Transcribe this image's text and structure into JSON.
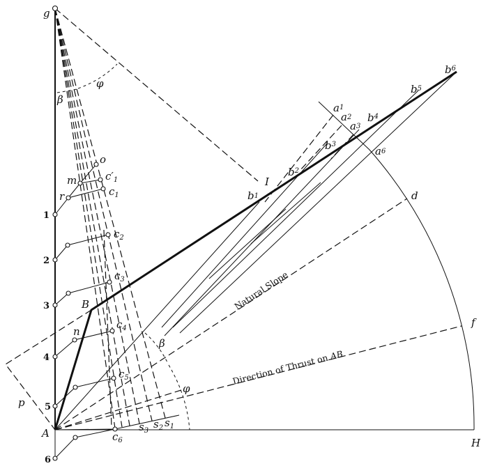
{
  "labels": {
    "g": "g",
    "A": "A",
    "B": "B",
    "H": "H",
    "I": "I",
    "d": "d",
    "f": "f",
    "p": "p",
    "m": "m",
    "o": "o",
    "r": "r",
    "n": "n",
    "beta_top": "β",
    "phi_top": "φ",
    "beta_bottom": "β",
    "phi_bottom": "φ",
    "c1": "c",
    "c1p": "c′",
    "c2": "c",
    "c3": "c",
    "c4": "c",
    "c5": "c",
    "c6": "c",
    "s1": "s",
    "s2": "s",
    "s3": "s",
    "a1": "a",
    "a2": "a",
    "a3": "a",
    "a6": "a",
    "b1": "b",
    "b2": "b",
    "b3": "b",
    "b4": "b",
    "b5": "b",
    "b6": "b",
    "subs": {
      "1": "1",
      "2": "2",
      "3": "3",
      "4": "4",
      "5": "5",
      "6": "6"
    }
  },
  "numbers": [
    "1",
    "2",
    "3",
    "4",
    "5",
    "6"
  ],
  "captions": {
    "natural_slope": "Natural Slope",
    "thrust_prefix": "Direction of Thrust on ",
    "thrust_wall": "AB"
  }
}
